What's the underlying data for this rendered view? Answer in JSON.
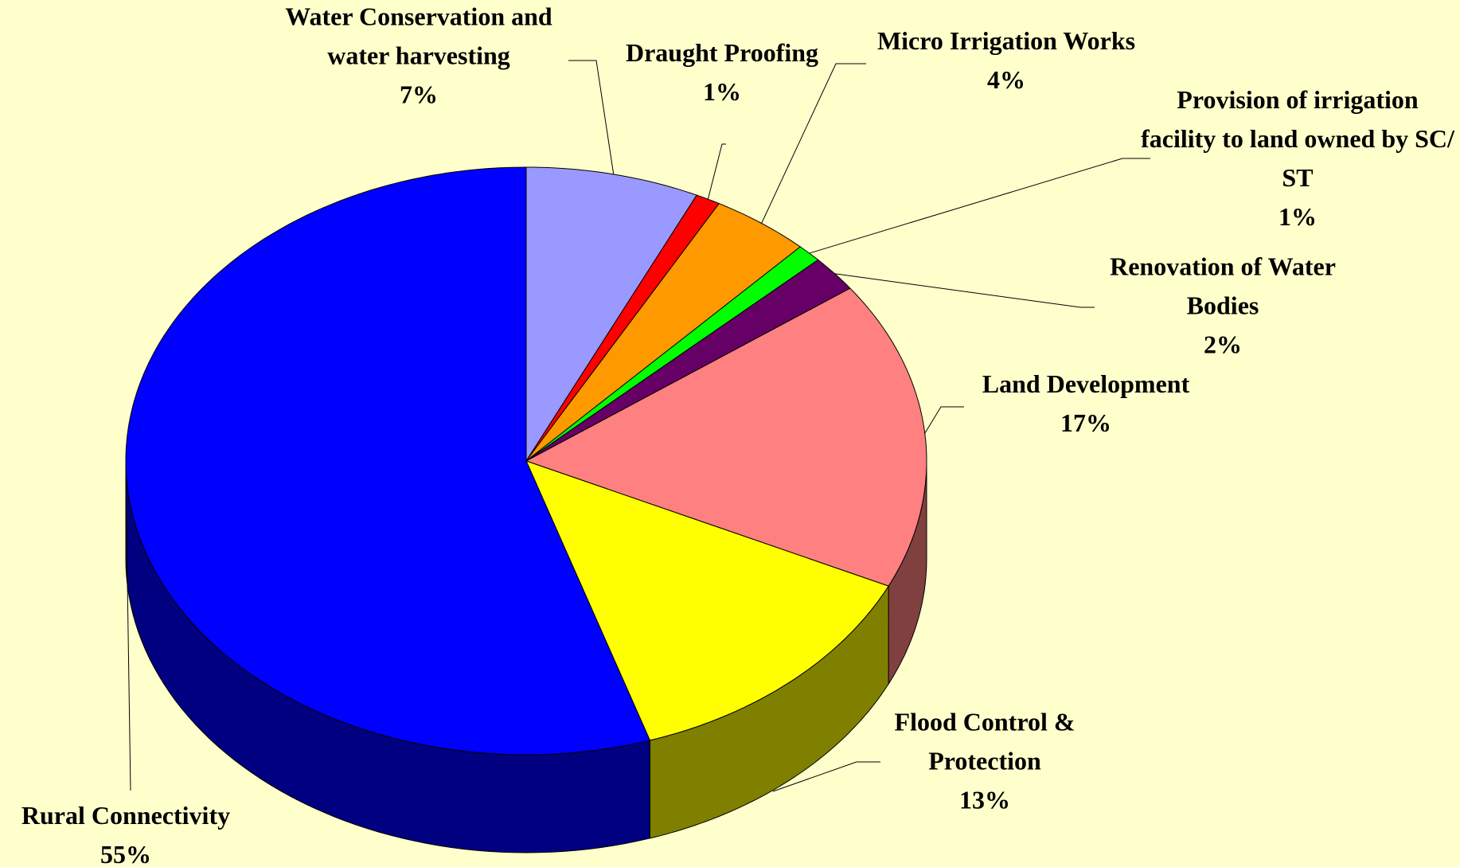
{
  "chart_data": {
    "type": "pie",
    "categories": [
      "Water Conservation and water harvesting",
      "Draught Proofing",
      "Micro Irrigation Works",
      "Provision of irrigation facility to land owned by SC/ ST",
      "Renovation of Water Bodies",
      "Land Development",
      "Flood Control & Protection",
      "Rural Connectivity"
    ],
    "values": [
      7,
      1,
      4,
      1,
      2,
      17,
      13,
      55
    ],
    "value_labels": [
      "7%",
      "1%",
      "4%",
      "1%",
      "2%",
      "17%",
      "13%",
      "55%"
    ],
    "colors": [
      "#9999ff",
      "#ff0000",
      "#ff9900",
      "#00ff00",
      "#660066",
      "#ff8080",
      "#ffff00",
      "#0000ff"
    ]
  }
}
